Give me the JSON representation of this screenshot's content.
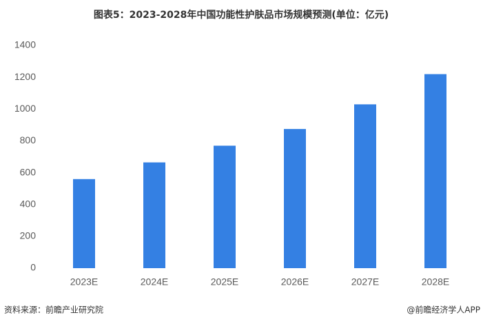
{
  "chart_data": {
    "type": "bar",
    "title": "图表5：2023-2028年中国功能性护肤品市场规模预测(单位：亿元)",
    "categories": [
      "2023E",
      "2024E",
      "2025E",
      "2026E",
      "2027E",
      "2028E"
    ],
    "values": [
      560,
      665,
      770,
      875,
      1030,
      1220
    ],
    "color": "#3480e3",
    "ylim": [
      0,
      1400
    ],
    "yticks": [
      0,
      200,
      400,
      600,
      800,
      1000,
      1200,
      1400
    ],
    "grid": false,
    "source": "资料来源：前瞻产业研究院",
    "credit": "@前瞻经济学人APP"
  }
}
